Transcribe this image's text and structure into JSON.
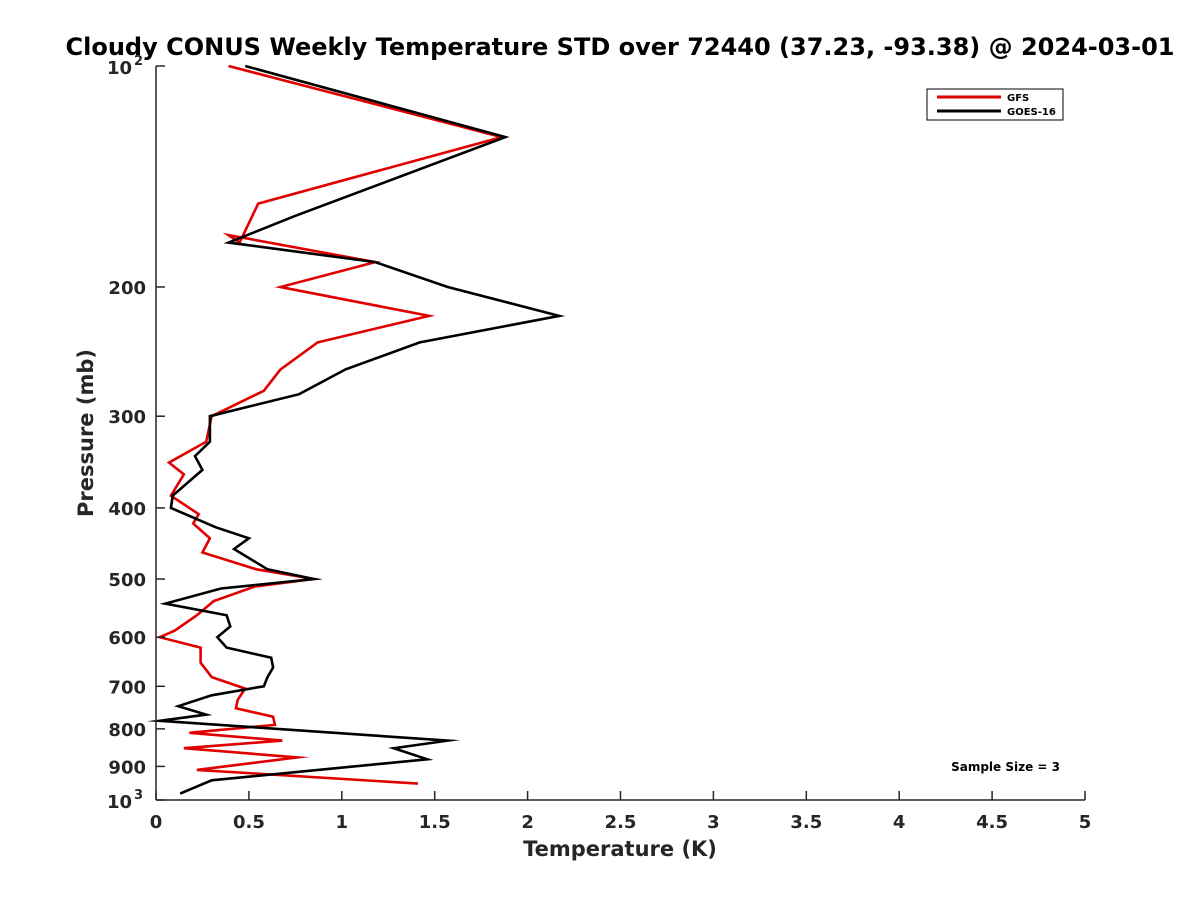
{
  "chart_data": {
    "type": "line",
    "title": "Cloudy CONUS Weekly Temperature STD over 72440 (37.23, -93.38) @ 2024-03-01",
    "xlabel": "Temperature (K)",
    "ylabel": "Pressure (mb)",
    "xlim": [
      0,
      5
    ],
    "ylim": [
      100,
      1000
    ],
    "y_scale": "log",
    "y_reversed": true,
    "x_ticks": [
      "0",
      "0.5",
      "1",
      "1.5",
      "2",
      "2.5",
      "3",
      "3.5",
      "4",
      "4.5",
      "5"
    ],
    "y_ticks": [
      {
        "value": 100,
        "base": "10",
        "exp": "2"
      },
      {
        "value": 200,
        "label": "200"
      },
      {
        "value": 300,
        "label": "300"
      },
      {
        "value": 400,
        "label": "400"
      },
      {
        "value": 500,
        "label": "500"
      },
      {
        "value": 600,
        "label": "600"
      },
      {
        "value": 700,
        "label": "700"
      },
      {
        "value": 800,
        "label": "800"
      },
      {
        "value": 900,
        "label": "900"
      },
      {
        "value": 1000,
        "base": "10",
        "exp": "3"
      }
    ],
    "legend_position": "top-right",
    "grid": false,
    "annotation": "Sample Size = 3",
    "series": [
      {
        "name": "GFS",
        "color": "#e00000",
        "points": [
          [
            0.39,
            100
          ],
          [
            1.86,
            125
          ],
          [
            0.55,
            154
          ],
          [
            0.45,
            174
          ],
          [
            0.39,
            170
          ],
          [
            1.18,
            185
          ],
          [
            0.67,
            200
          ],
          [
            1.47,
            219
          ],
          [
            0.87,
            238
          ],
          [
            0.67,
            259
          ],
          [
            0.58,
            277
          ],
          [
            0.3,
            300
          ],
          [
            0.27,
            325
          ],
          [
            0.07,
            347
          ],
          [
            0.15,
            360
          ],
          [
            0.08,
            385
          ],
          [
            0.23,
            408
          ],
          [
            0.2,
            420
          ],
          [
            0.29,
            440
          ],
          [
            0.25,
            460
          ],
          [
            0.54,
            485
          ],
          [
            0.85,
            500
          ],
          [
            0.53,
            512
          ],
          [
            0.31,
            536
          ],
          [
            0.22,
            560
          ],
          [
            0.1,
            588
          ],
          [
            0.02,
            600
          ],
          [
            0.24,
            620
          ],
          [
            0.24,
            650
          ],
          [
            0.3,
            680
          ],
          [
            0.48,
            705
          ],
          [
            0.44,
            730
          ],
          [
            0.43,
            750
          ],
          [
            0.63,
            770
          ],
          [
            0.64,
            790
          ],
          [
            0.18,
            810
          ],
          [
            0.68,
            830
          ],
          [
            0.15,
            850
          ],
          [
            0.76,
            875
          ],
          [
            0.22,
            910
          ],
          [
            1.41,
            950
          ]
        ]
      },
      {
        "name": "GOES-16",
        "color": "#000000",
        "points": [
          [
            0.48,
            100
          ],
          [
            1.88,
            125
          ],
          [
            0.75,
            160
          ],
          [
            0.39,
            174
          ],
          [
            1.18,
            185
          ],
          [
            1.57,
            200
          ],
          [
            2.17,
            219
          ],
          [
            1.42,
            238
          ],
          [
            1.02,
            259
          ],
          [
            0.77,
            280
          ],
          [
            0.29,
            300
          ],
          [
            0.29,
            325
          ],
          [
            0.21,
            340
          ],
          [
            0.25,
            355
          ],
          [
            0.09,
            385
          ],
          [
            0.08,
            400
          ],
          [
            0.32,
            425
          ],
          [
            0.5,
            440
          ],
          [
            0.42,
            455
          ],
          [
            0.6,
            485
          ],
          [
            0.85,
            500
          ],
          [
            0.35,
            515
          ],
          [
            0.05,
            540
          ],
          [
            0.38,
            560
          ],
          [
            0.4,
            580
          ],
          [
            0.33,
            600
          ],
          [
            0.38,
            620
          ],
          [
            0.62,
            640
          ],
          [
            0.63,
            660
          ],
          [
            0.6,
            680
          ],
          [
            0.58,
            700
          ],
          [
            0.3,
            720
          ],
          [
            0.12,
            745
          ],
          [
            0.27,
            765
          ],
          [
            0.02,
            780
          ],
          [
            1.57,
            830
          ],
          [
            1.28,
            850
          ],
          [
            1.46,
            880
          ],
          [
            0.3,
            940
          ],
          [
            0.13,
            980
          ]
        ]
      }
    ]
  }
}
